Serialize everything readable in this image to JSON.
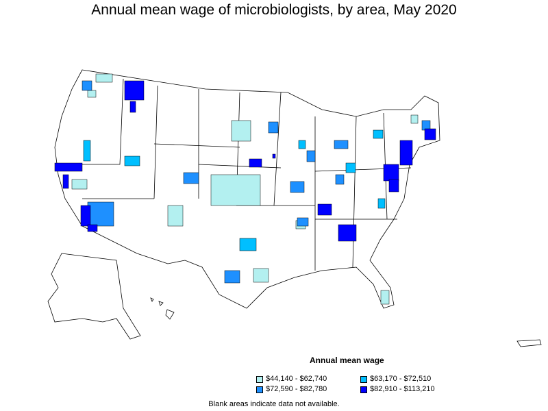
{
  "title": "Annual mean wage of microbiologists, by area, May 2020",
  "legend": {
    "title": "Annual mean wage",
    "items": [
      {
        "label": "$44,140 - $62,740",
        "color": "#b3f0f0"
      },
      {
        "label": "$63,170 - $72,510",
        "color": "#00bfff"
      },
      {
        "label": "$72,590 - $82,780",
        "color": "#1e90ff"
      },
      {
        "label": "$82,910 - $113,210",
        "color": "#0000ff"
      }
    ]
  },
  "note": "Blank areas indicate data not available."
}
